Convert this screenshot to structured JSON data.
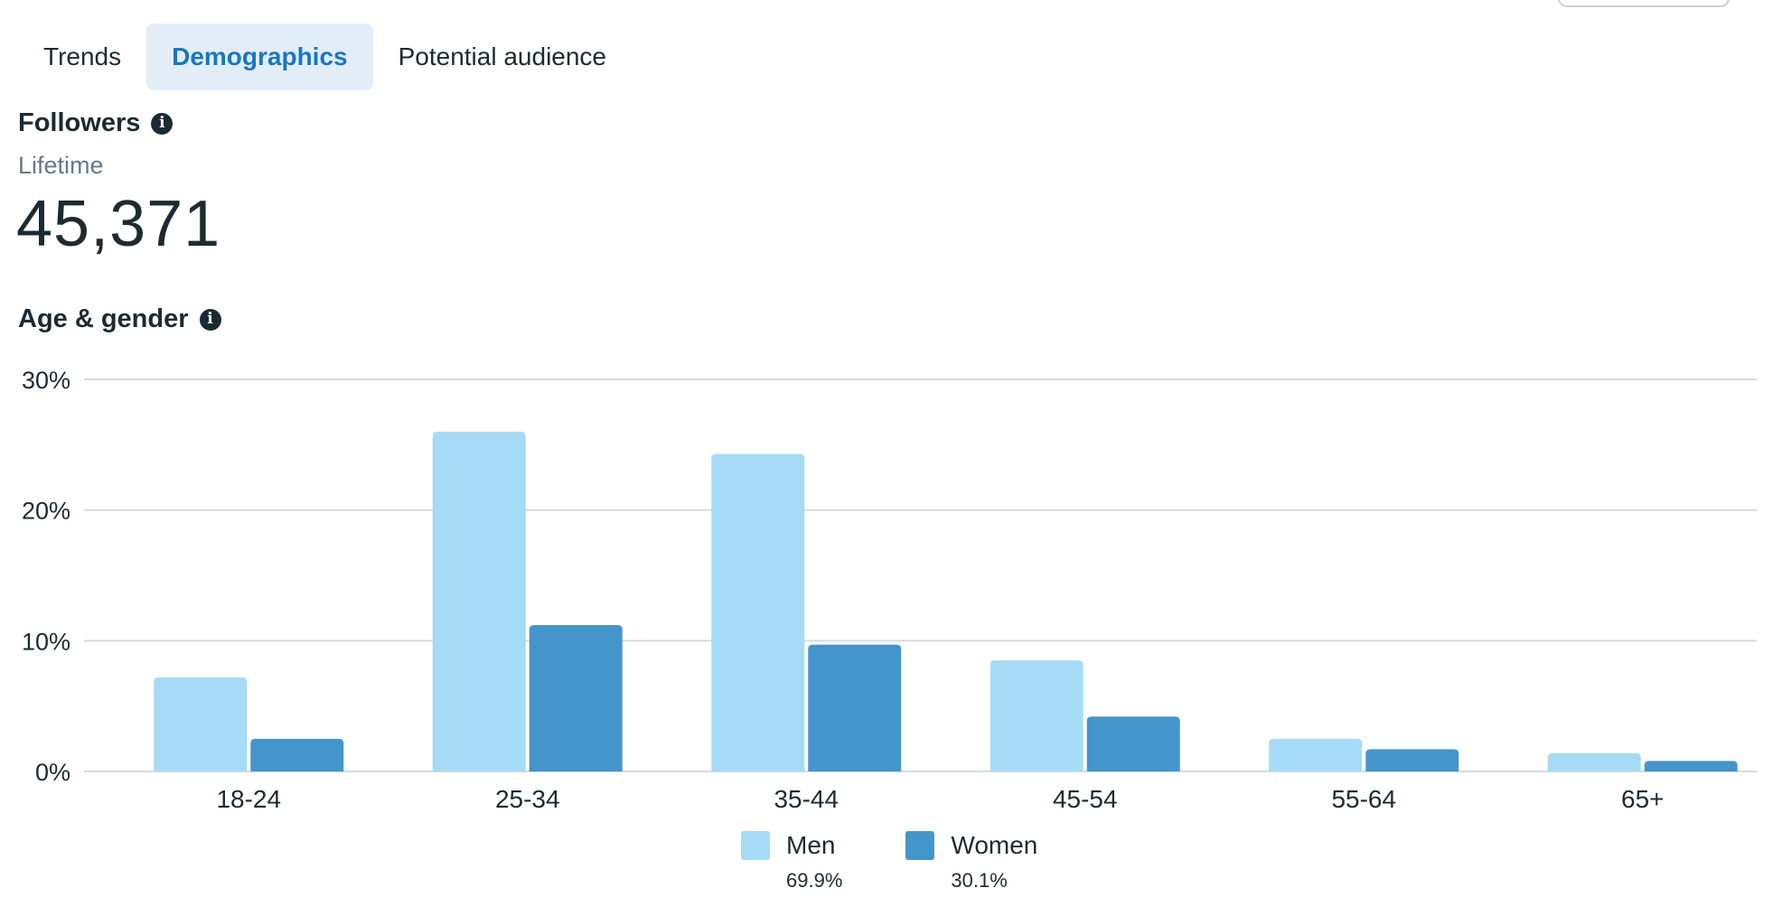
{
  "tabs": [
    {
      "label": "Trends",
      "active": false
    },
    {
      "label": "Demographics",
      "active": true
    },
    {
      "label": "Potential audience",
      "active": false
    }
  ],
  "followers": {
    "title": "Followers",
    "info_icon": "info-icon",
    "period": "Lifetime",
    "count": "45,371"
  },
  "age_gender": {
    "title": "Age & gender",
    "info_icon": "info-icon"
  },
  "colors": {
    "men": "#a5dbf5",
    "women": "#4495cb",
    "active_tab_bg": "#e3edf8",
    "active_tab_text": "#1876c2",
    "grid": "#d5dbe0"
  },
  "chart_data": {
    "type": "bar",
    "categories": [
      "18-24",
      "25-34",
      "35-44",
      "45-54",
      "55-64",
      "65+"
    ],
    "series": [
      {
        "name": "Men",
        "values": [
          7.2,
          26.0,
          24.3,
          8.5,
          2.5,
          1.4
        ]
      },
      {
        "name": "Women",
        "values": [
          2.5,
          11.2,
          9.7,
          4.2,
          1.7,
          0.8
        ]
      }
    ],
    "y_ticks": [
      "0%",
      "10%",
      "20%",
      "30%"
    ],
    "ylim": [
      0,
      30
    ],
    "grid": true,
    "legend_position": "bottom"
  },
  "legend": [
    {
      "label": "Men",
      "percent": "69.9%"
    },
    {
      "label": "Women",
      "percent": "30.1%"
    }
  ]
}
